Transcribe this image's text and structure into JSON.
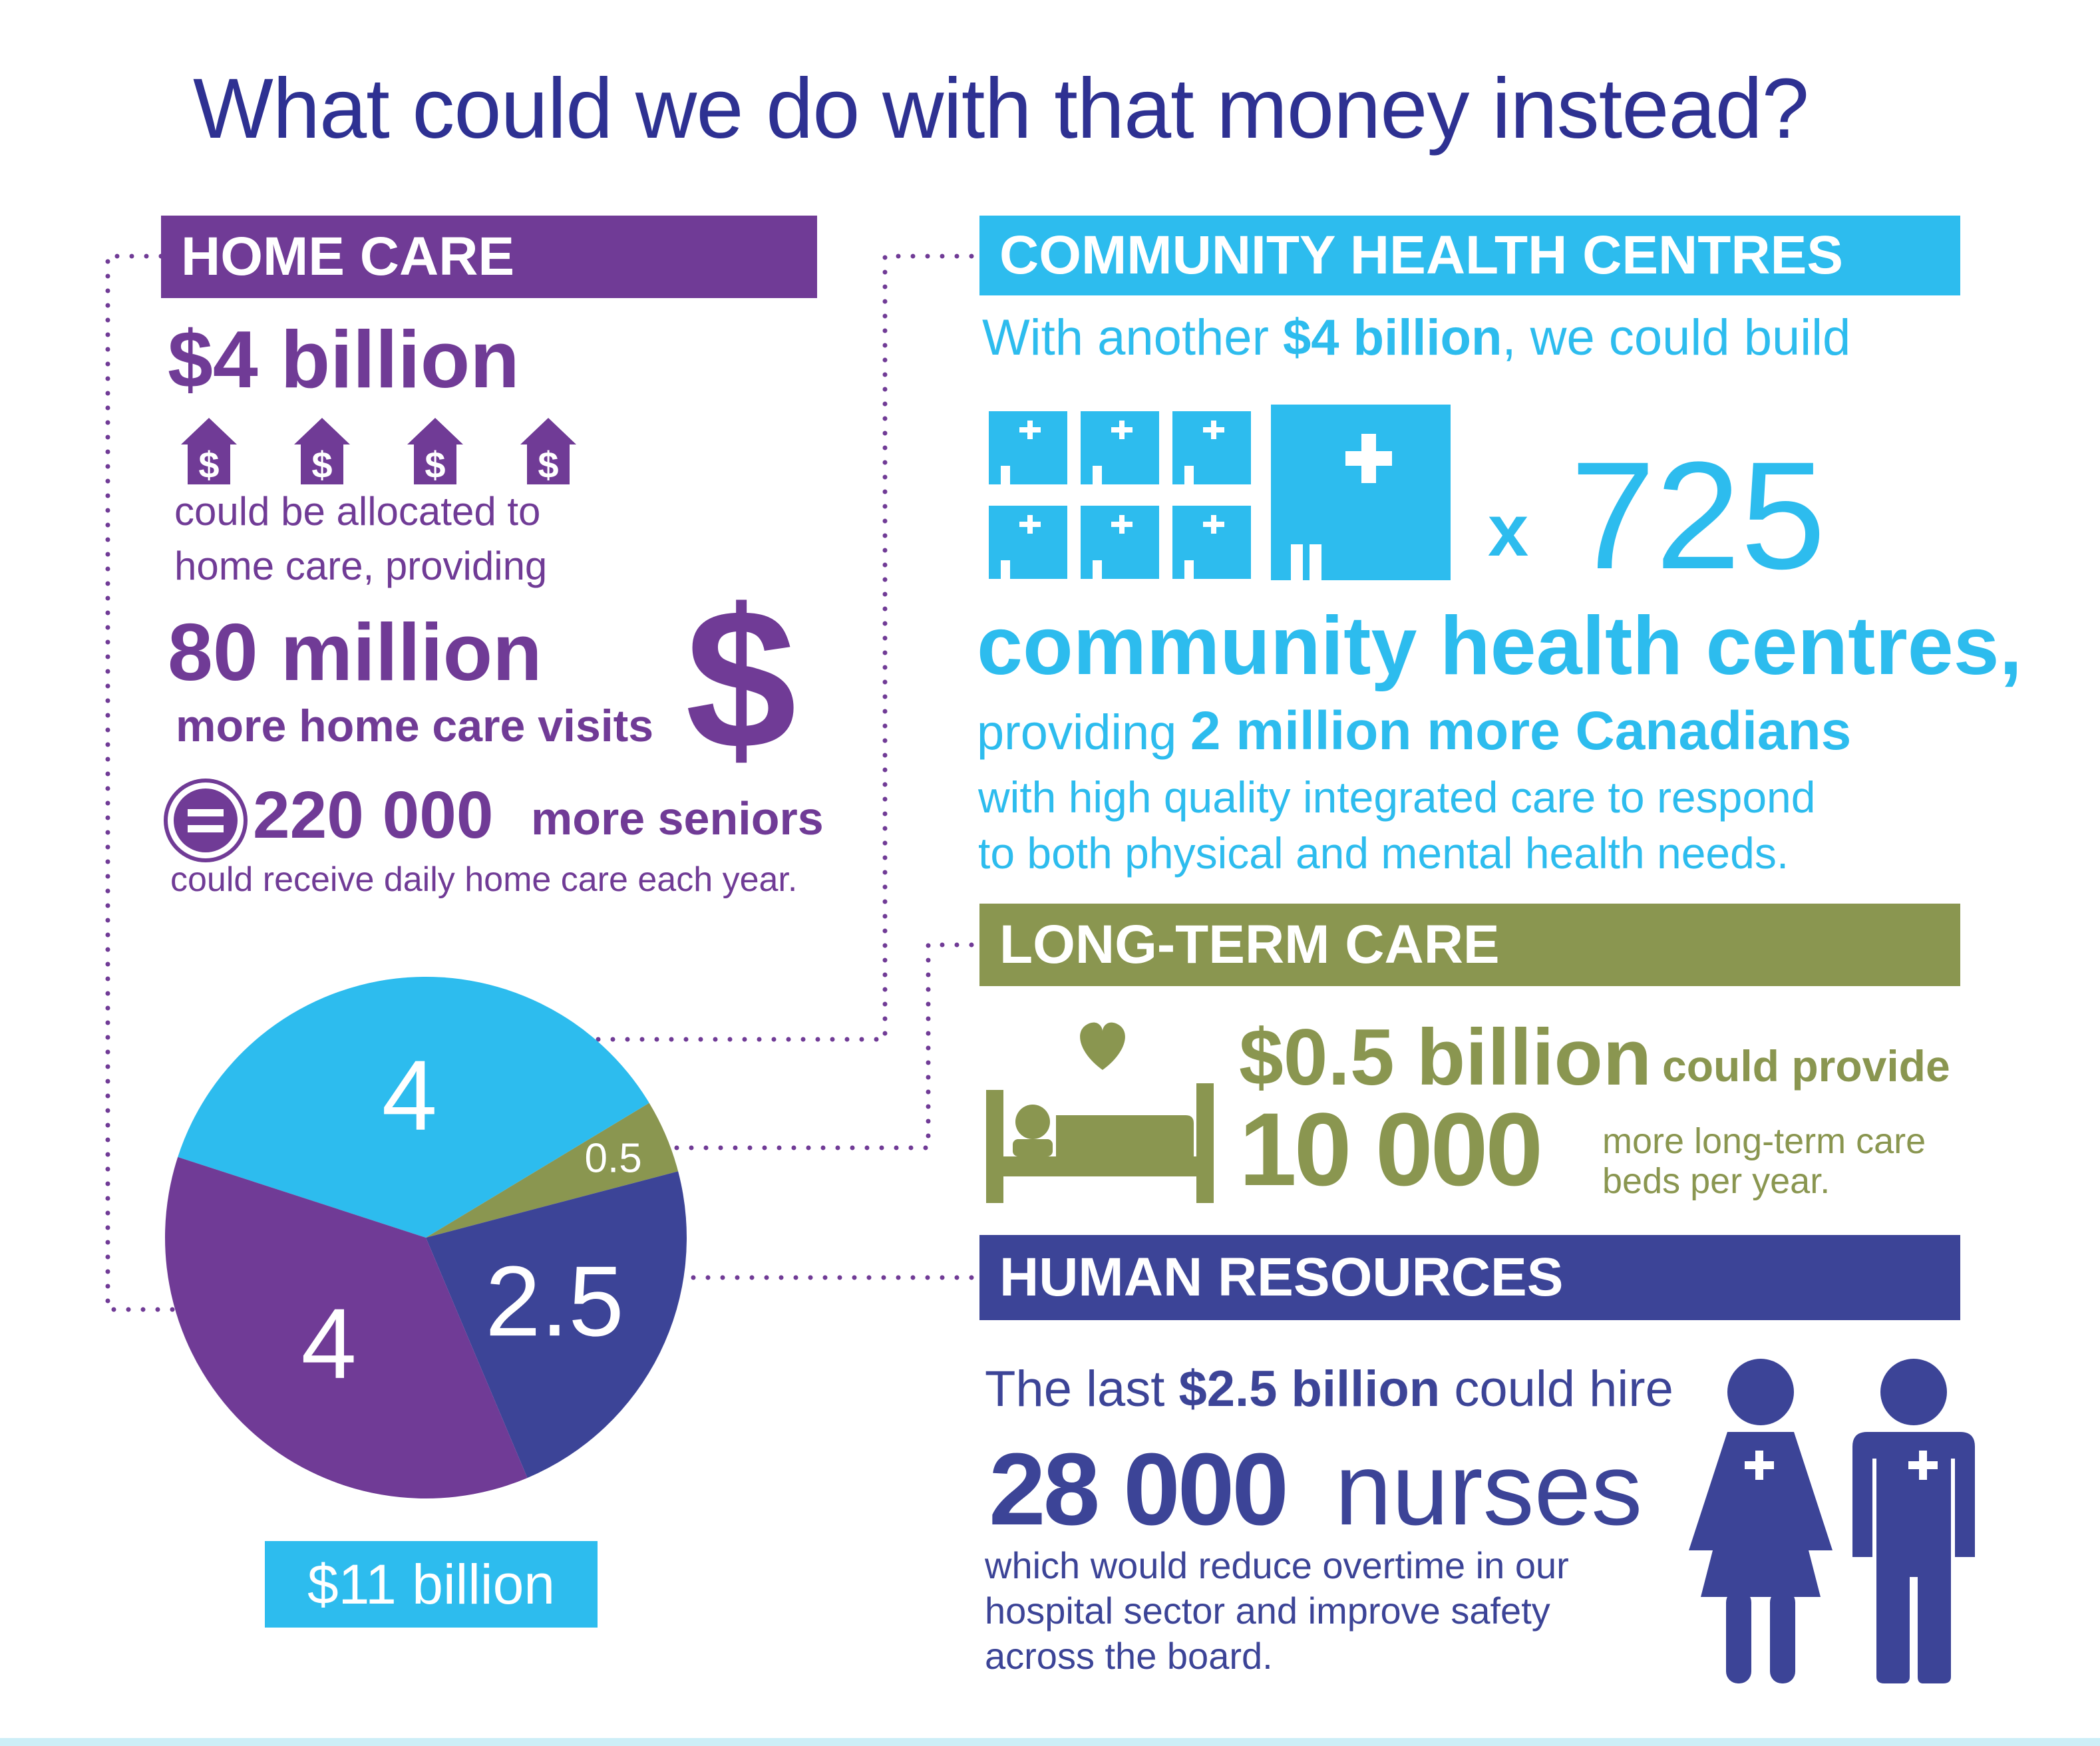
{
  "title": "What could we do with that money instead?",
  "home_care": {
    "heading": "HOME CARE",
    "amount": "$4 billion",
    "line1": "could be allocated to",
    "line2": "home care, providing",
    "visits_number": "80 million",
    "visits_label": "more home care visits",
    "seniors_number": "220 000",
    "seniors_label": "more seniors",
    "seniors_sub": "could receive daily home care each year.",
    "house_icon_symbol": "$",
    "dollar_symbol": "$"
  },
  "chc": {
    "heading": "COMMUNITY HEALTH CENTRES",
    "intro_pre": "With another ",
    "intro_bold": "$4 billion",
    "intro_post": ", we could build",
    "multiplier_x": "x",
    "multiplier_n": "725",
    "centres_label": "community health centres,",
    "providing_pre": "providing ",
    "providing_bold": "2 million more Canadians",
    "desc1": "with high quality integrated care to respond",
    "desc2": "to both physical and mental health needs."
  },
  "ltc": {
    "heading": "LONG-TERM CARE",
    "amount": "$0.5 billion",
    "amount_post": "could provide",
    "beds_number": "10 000",
    "beds_label1": "more long-term care",
    "beds_label2": "beds per year."
  },
  "hr": {
    "heading": "HUMAN RESOURCES",
    "intro_pre": "The last ",
    "intro_bold": "$2.5 billion",
    "intro_post": " could hire",
    "nurses_number": "28 000",
    "nurses_label": "nurses",
    "desc1": "which would reduce overtime in our",
    "desc2": "hospital sector and improve safety",
    "desc3": "across the board."
  },
  "chart_data": {
    "type": "pie",
    "total_label": "$11 billion",
    "slices": [
      {
        "label": "4",
        "value": 4,
        "color": "#2dbcee"
      },
      {
        "label": "0.5",
        "value": 0.5,
        "color": "#8a9650"
      },
      {
        "label": "2.5",
        "value": 2.5,
        "color": "#3c4497"
      },
      {
        "label": "4",
        "value": 4,
        "color": "#703b96"
      }
    ]
  },
  "colors": {
    "title": "#2e3192",
    "home_care": "#703b96",
    "chc": "#2dbcee",
    "ltc": "#8a9650",
    "hr": "#3c4497"
  }
}
